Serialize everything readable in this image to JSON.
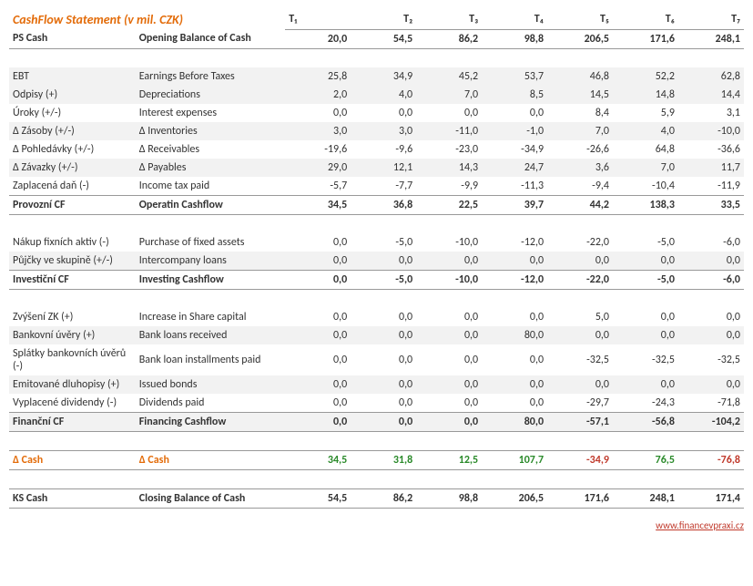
{
  "title": "CashFlow Statement (v mil. CZK)",
  "periods": [
    "T₁",
    "T₂",
    "T₃",
    "T₄",
    "T₅",
    "T₆",
    "T₇"
  ],
  "ps": {
    "cz": "PS Cash",
    "en": "Opening Balance of Cash",
    "v": [
      "20,0",
      "54,5",
      "86,2",
      "98,8",
      "206,5",
      "171,6",
      "248,1"
    ]
  },
  "op": [
    {
      "cz": "EBT",
      "en": "Earnings Before Taxes",
      "v": [
        "25,8",
        "34,9",
        "45,2",
        "53,7",
        "46,8",
        "52,2",
        "62,8"
      ],
      "s": 1
    },
    {
      "cz": "Odpisy (+)",
      "en": "Depreciations",
      "v": [
        "2,0",
        "4,0",
        "7,0",
        "8,5",
        "14,5",
        "14,8",
        "14,4"
      ],
      "s": 1
    },
    {
      "cz": "Úroky (+/-)",
      "en": "Interest expenses",
      "v": [
        "0,0",
        "0,0",
        "0,0",
        "0,0",
        "8,4",
        "5,9",
        "3,1"
      ],
      "s": 0
    },
    {
      "cz": "Δ Zásoby (+/-)",
      "en": "Δ Inventories",
      "v": [
        "3,0",
        "3,0",
        "-11,0",
        "-1,0",
        "7,0",
        "4,0",
        "-10,0"
      ],
      "s": 1
    },
    {
      "cz": "Δ Pohledávky (+/-)",
      "en": "Δ Receivables",
      "v": [
        "-19,6",
        "-9,6",
        "-23,0",
        "-34,9",
        "-26,6",
        "64,8",
        "-36,6"
      ],
      "s": 0
    },
    {
      "cz": "Δ Závazky (+/-)",
      "en": "Δ Payables",
      "v": [
        "29,0",
        "12,1",
        "14,3",
        "24,7",
        "3,6",
        "7,0",
        "11,7"
      ],
      "s": 1
    },
    {
      "cz": "Zaplacená daň (-)",
      "en": "Income tax paid",
      "v": [
        "-5,7",
        "-7,7",
        "-9,9",
        "-11,3",
        "-9,4",
        "-10,4",
        "-11,9"
      ],
      "s": 0
    }
  ],
  "op_total": {
    "cz": "Provozní CF",
    "en": "Operatin Cashflow",
    "v": [
      "34,5",
      "36,8",
      "22,5",
      "39,7",
      "44,2",
      "138,3",
      "33,5"
    ]
  },
  "inv": [
    {
      "cz": "Nákup fixních aktiv (-)",
      "en": "Purchase of fixed assets",
      "v": [
        "0,0",
        "-5,0",
        "-10,0",
        "-12,0",
        "-22,0",
        "-5,0",
        "-6,0"
      ],
      "s": 0
    },
    {
      "cz": "Půjčky ve skupině (+/-)",
      "en": "Intercompany loans",
      "v": [
        "0,0",
        "0,0",
        "0,0",
        "0,0",
        "0,0",
        "0,0",
        "0,0"
      ],
      "s": 1
    }
  ],
  "inv_total": {
    "cz": "Investiční CF",
    "en": "Investing Cashflow",
    "v": [
      "0,0",
      "-5,0",
      "-10,0",
      "-12,0",
      "-22,0",
      "-5,0",
      "-6,0"
    ]
  },
  "fin": [
    {
      "cz": "Zvýšení ZK (+)",
      "en": "Increase in Share capital",
      "v": [
        "0,0",
        "0,0",
        "0,0",
        "0,0",
        "5,0",
        "0,0",
        "0,0"
      ],
      "s": 0
    },
    {
      "cz": "Bankovní úvěry (+)",
      "en": "Bank loans received",
      "v": [
        "0,0",
        "0,0",
        "0,0",
        "80,0",
        "0,0",
        "0,0",
        "0,0"
      ],
      "s": 1
    },
    {
      "cz": "Splátky bankovních úvěrů (-)",
      "en": "Bank loan installments paid",
      "v": [
        "0,0",
        "0,0",
        "0,0",
        "0,0",
        "-32,5",
        "-32,5",
        "-32,5"
      ],
      "s": 0
    },
    {
      "cz": "Emitované dluhopisy (+)",
      "en": "Issued bonds",
      "v": [
        "0,0",
        "0,0",
        "0,0",
        "0,0",
        "0,0",
        "0,0",
        "0,0"
      ],
      "s": 1
    },
    {
      "cz": "Vyplacené dividendy (-)",
      "en": "Dividends paid",
      "v": [
        "0,0",
        "0,0",
        "0,0",
        "0,0",
        "-29,7",
        "-24,3",
        "-71,8"
      ],
      "s": 0
    }
  ],
  "fin_total": {
    "cz": "Finanční CF",
    "en": "Financing Cashflow",
    "v": [
      "0,0",
      "0,0",
      "0,0",
      "80,0",
      "-57,1",
      "-56,8",
      "-104,2"
    ]
  },
  "delta": {
    "cz": "Δ Cash",
    "en": "Δ Cash",
    "v": [
      "34,5",
      "31,8",
      "12,5",
      "107,7",
      "-34,9",
      "76,5",
      "-76,8"
    ]
  },
  "ks": {
    "cz": "KS Cash",
    "en": "Closing Balance of Cash",
    "v": [
      "54,5",
      "86,2",
      "98,8",
      "206,5",
      "171,6",
      "248,1",
      "171,4"
    ]
  },
  "footer_link": "www.financevpraxi.cz"
}
